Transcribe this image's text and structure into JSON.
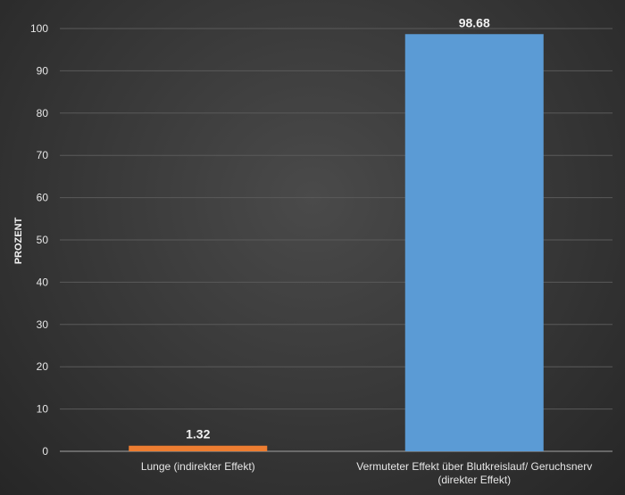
{
  "chart_data": {
    "type": "bar",
    "title": "",
    "xlabel": "",
    "ylabel": "PROZENT",
    "ylim": [
      0,
      100
    ],
    "yticks": [
      0,
      10,
      20,
      30,
      40,
      50,
      60,
      70,
      80,
      90,
      100
    ],
    "grid": true,
    "categories": [
      [
        "Lunge (indirekter Effekt)"
      ],
      [
        "Vermuteter Effekt über Blutkreislauf/ Geruchsnerv",
        "(direkter Effekt)"
      ]
    ],
    "values": [
      1.32,
      98.68
    ],
    "value_labels": [
      "1.32",
      "98.68"
    ],
    "colors": [
      "#ed7d31",
      "#5b9bd5"
    ]
  }
}
